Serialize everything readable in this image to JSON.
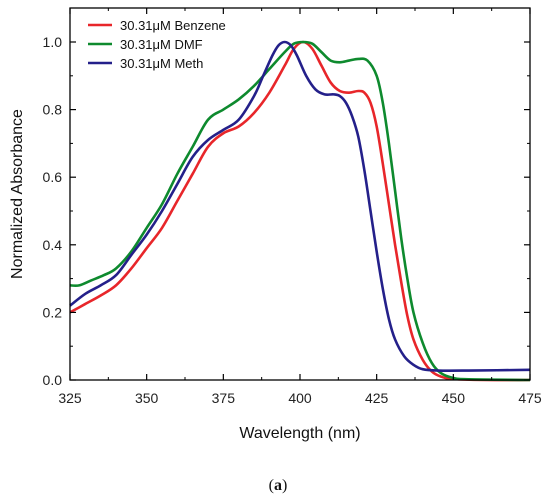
{
  "chart_data": {
    "type": "line",
    "xlabel": "Wavelength (nm)",
    "ylabel": "Normalized Absorbance",
    "xlim": [
      325,
      475
    ],
    "ylim": [
      0.0,
      1.05
    ],
    "x_ticks": [
      "325",
      "350",
      "375",
      "400",
      "425",
      "450",
      "475"
    ],
    "y_ticks": [
      "0.0",
      "0.2",
      "0.4",
      "0.6",
      "0.8",
      "1.0"
    ],
    "grid": false,
    "legend_position": "top-left",
    "series": [
      {
        "name": "30.31μM Benzene",
        "color": "#e8262a",
        "points": [
          [
            325,
            0.2
          ],
          [
            330,
            0.225
          ],
          [
            335,
            0.25
          ],
          [
            340,
            0.28
          ],
          [
            345,
            0.33
          ],
          [
            350,
            0.39
          ],
          [
            355,
            0.45
          ],
          [
            360,
            0.53
          ],
          [
            365,
            0.61
          ],
          [
            370,
            0.69
          ],
          [
            375,
            0.73
          ],
          [
            380,
            0.75
          ],
          [
            385,
            0.79
          ],
          [
            390,
            0.85
          ],
          [
            395,
            0.93
          ],
          [
            398,
            0.98
          ],
          [
            401,
            1.0
          ],
          [
            404,
            0.98
          ],
          [
            407,
            0.93
          ],
          [
            410,
            0.88
          ],
          [
            413,
            0.855
          ],
          [
            416,
            0.85
          ],
          [
            419,
            0.855
          ],
          [
            421,
            0.85
          ],
          [
            423,
            0.82
          ],
          [
            425,
            0.75
          ],
          [
            427,
            0.64
          ],
          [
            429,
            0.52
          ],
          [
            431,
            0.4
          ],
          [
            433,
            0.29
          ],
          [
            435,
            0.19
          ],
          [
            437,
            0.12
          ],
          [
            440,
            0.06
          ],
          [
            443,
            0.025
          ],
          [
            446,
            0.01
          ],
          [
            450,
            0.003
          ],
          [
            460,
            0.0
          ],
          [
            475,
            0.0
          ]
        ]
      },
      {
        "name": "30.31μM DMF",
        "color": "#0e8a2e",
        "points": [
          [
            325,
            0.28
          ],
          [
            328,
            0.28
          ],
          [
            332,
            0.295
          ],
          [
            336,
            0.31
          ],
          [
            340,
            0.33
          ],
          [
            345,
            0.38
          ],
          [
            350,
            0.45
          ],
          [
            355,
            0.52
          ],
          [
            360,
            0.61
          ],
          [
            365,
            0.69
          ],
          [
            370,
            0.77
          ],
          [
            375,
            0.8
          ],
          [
            380,
            0.83
          ],
          [
            385,
            0.87
          ],
          [
            390,
            0.92
          ],
          [
            395,
            0.97
          ],
          [
            398,
            0.995
          ],
          [
            401,
            1.0
          ],
          [
            404,
            0.995
          ],
          [
            407,
            0.97
          ],
          [
            410,
            0.945
          ],
          [
            413,
            0.94
          ],
          [
            416,
            0.945
          ],
          [
            419,
            0.95
          ],
          [
            422,
            0.945
          ],
          [
            425,
            0.9
          ],
          [
            427,
            0.82
          ],
          [
            429,
            0.7
          ],
          [
            431,
            0.56
          ],
          [
            433,
            0.42
          ],
          [
            435,
            0.3
          ],
          [
            437,
            0.2
          ],
          [
            440,
            0.11
          ],
          [
            443,
            0.05
          ],
          [
            446,
            0.02
          ],
          [
            450,
            0.006
          ],
          [
            455,
            0.002
          ],
          [
            475,
            0.0
          ]
        ]
      },
      {
        "name": "30.31μM Meth",
        "color": "#24208a",
        "points": [
          [
            325,
            0.22
          ],
          [
            330,
            0.255
          ],
          [
            335,
            0.28
          ],
          [
            340,
            0.31
          ],
          [
            345,
            0.37
          ],
          [
            350,
            0.43
          ],
          [
            355,
            0.5
          ],
          [
            360,
            0.58
          ],
          [
            365,
            0.66
          ],
          [
            370,
            0.71
          ],
          [
            375,
            0.74
          ],
          [
            380,
            0.77
          ],
          [
            385,
            0.84
          ],
          [
            388,
            0.9
          ],
          [
            391,
            0.96
          ],
          [
            393,
            0.99
          ],
          [
            395,
            1.0
          ],
          [
            397,
            0.99
          ],
          [
            399,
            0.96
          ],
          [
            402,
            0.9
          ],
          [
            405,
            0.86
          ],
          [
            408,
            0.845
          ],
          [
            411,
            0.845
          ],
          [
            413,
            0.84
          ],
          [
            415,
            0.82
          ],
          [
            417,
            0.78
          ],
          [
            419,
            0.72
          ],
          [
            421,
            0.62
          ],
          [
            423,
            0.5
          ],
          [
            425,
            0.38
          ],
          [
            427,
            0.27
          ],
          [
            429,
            0.18
          ],
          [
            431,
            0.12
          ],
          [
            434,
            0.07
          ],
          [
            437,
            0.045
          ],
          [
            440,
            0.032
          ],
          [
            445,
            0.028
          ],
          [
            455,
            0.028
          ],
          [
            475,
            0.03
          ]
        ]
      }
    ]
  },
  "caption": {
    "open": "(",
    "letter": "a",
    "close": ")"
  }
}
